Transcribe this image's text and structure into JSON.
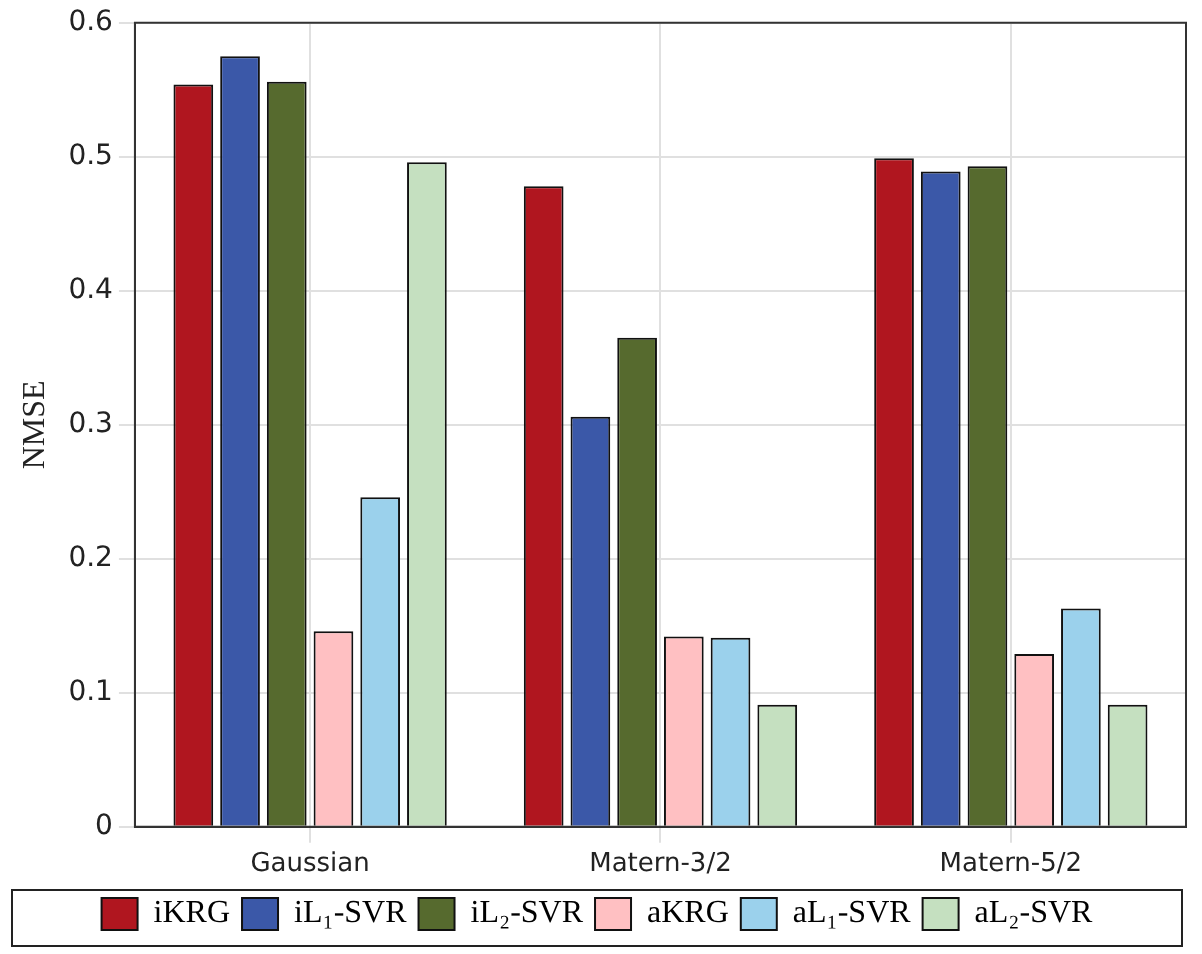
{
  "chart_data": {
    "type": "bar",
    "ylabel": "NMSE",
    "categories": [
      "Gaussian",
      "Matern-3/2",
      "Matern-5/2"
    ],
    "series": [
      {
        "name": "iKRG",
        "color": "#b0161f",
        "values": [
          0.554,
          0.478,
          0.499
        ]
      },
      {
        "name": "iL₁-SVR",
        "color": "#3b58a8",
        "values": [
          0.575,
          0.306,
          0.489
        ]
      },
      {
        "name": "iL₂-SVR",
        "color": "#566a2e",
        "values": [
          0.556,
          0.365,
          0.493
        ]
      },
      {
        "name": "aKRG",
        "color": "#ffc0c2",
        "values": [
          0.146,
          0.142,
          0.129
        ]
      },
      {
        "name": "aL₁-SVR",
        "color": "#9bd1ec",
        "values": [
          0.246,
          0.141,
          0.163
        ]
      },
      {
        "name": "aL₂-SVR",
        "color": "#c5e0c0",
        "values": [
          0.496,
          0.091,
          0.091
        ]
      }
    ],
    "ylim": [
      0,
      0.6
    ],
    "yticks": [
      0,
      0.1,
      0.2,
      0.3,
      0.4,
      0.5,
      0.6
    ],
    "grid": true,
    "legend": "bottom"
  }
}
